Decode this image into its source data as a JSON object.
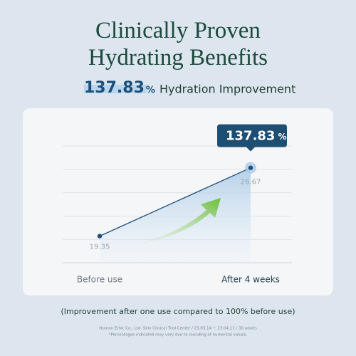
{
  "chart_data": {
    "type": "line",
    "title": "Clinically Proven Hydrating Benefits",
    "headline": {
      "value": 137.83,
      "unit": "%",
      "text": "Hydration Improvement"
    },
    "categories": [
      "Before use",
      "After 4 weeks"
    ],
    "series": [
      {
        "name": "Hydration",
        "color": "#1f4e73",
        "values": [
          19.35,
          26.67
        ]
      }
    ],
    "ylim": [
      16.5,
      30
    ],
    "yticks": [
      19,
      21.5,
      24,
      26.5,
      29
    ],
    "grid": true,
    "note": "(Improvement after one use compared to 100% before use)",
    "source": "Human Ethic Co., Ltd. Skin Clinical Trial Center / 23.03.14 ~ 23.04.11 / 30 adults",
    "disclaimer": "*Percentages indicated may vary due to rounding of numerical values."
  }
}
